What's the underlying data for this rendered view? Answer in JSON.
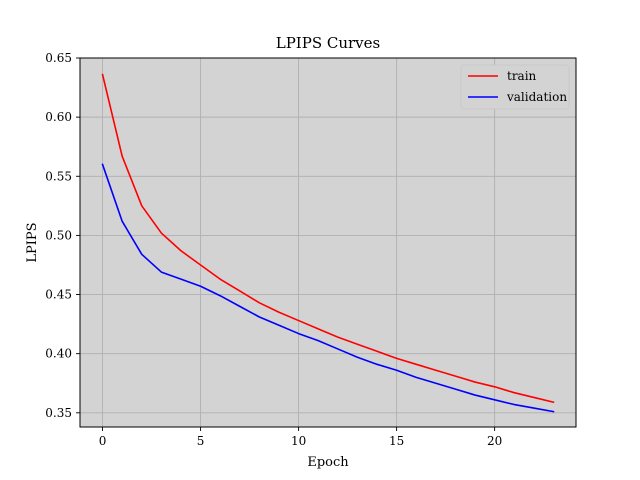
{
  "chart_data": {
    "type": "line",
    "title": "LPIPS Curves",
    "xlabel": "Epoch",
    "ylabel": "LPIPS",
    "xlim": [
      -1.15,
      24.15
    ],
    "ylim": [
      0.338,
      0.65
    ],
    "xticks": [
      0,
      5,
      10,
      15,
      20
    ],
    "yticks": [
      0.35,
      0.4,
      0.45,
      0.5,
      0.55,
      0.6,
      0.65
    ],
    "xtick_labels": [
      "0",
      "5",
      "10",
      "15",
      "20"
    ],
    "ytick_labels": [
      "0.35",
      "0.40",
      "0.45",
      "0.50",
      "0.55",
      "0.60",
      "0.65"
    ],
    "grid": true,
    "legend_position": "top-right",
    "background_color": "#d3d3d3",
    "grid_color": "#b0b0b0",
    "series": [
      {
        "name": "train",
        "color": "#ff0000",
        "x": [
          0,
          1,
          2,
          3,
          4,
          5,
          6,
          7,
          8,
          9,
          10,
          11,
          12,
          13,
          14,
          15,
          16,
          17,
          18,
          19,
          20,
          21,
          22,
          23
        ],
        "y": [
          0.636,
          0.567,
          0.525,
          0.502,
          0.487,
          0.475,
          0.463,
          0.453,
          0.443,
          0.435,
          0.428,
          0.421,
          0.414,
          0.408,
          0.402,
          0.396,
          0.391,
          0.386,
          0.381,
          0.376,
          0.372,
          0.367,
          0.363,
          0.359
        ]
      },
      {
        "name": "validation",
        "color": "#0000ff",
        "x": [
          0,
          1,
          2,
          3,
          4,
          5,
          6,
          7,
          8,
          9,
          10,
          11,
          12,
          13,
          14,
          15,
          16,
          17,
          18,
          19,
          20,
          21,
          22,
          23
        ],
        "y": [
          0.56,
          0.512,
          0.484,
          0.469,
          0.463,
          0.457,
          0.449,
          0.44,
          0.431,
          0.424,
          0.417,
          0.411,
          0.404,
          0.397,
          0.391,
          0.386,
          0.38,
          0.375,
          0.37,
          0.365,
          0.361,
          0.357,
          0.354,
          0.351
        ]
      }
    ]
  }
}
